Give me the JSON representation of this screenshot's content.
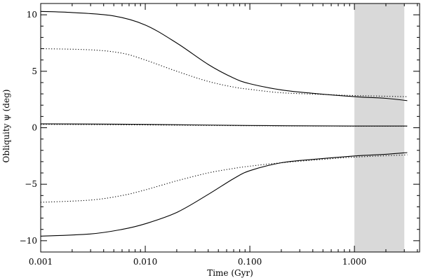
{
  "chart_data": {
    "type": "line",
    "xlabel": "Time (Gyr)",
    "ylabel": "Obliquity ψ (deg)",
    "x_scale": "log",
    "xlim": [
      0.001,
      4.2
    ],
    "ylim": [
      -11,
      11
    ],
    "x_ticks": [
      {
        "value": 0.001,
        "label": "0.001"
      },
      {
        "value": 0.01,
        "label": "0.010"
      },
      {
        "value": 0.1,
        "label": "0.100"
      },
      {
        "value": 1.0,
        "label": "1.000"
      }
    ],
    "y_ticks": [
      {
        "value": -10,
        "label": "−10"
      },
      {
        "value": -5,
        "label": "−5"
      },
      {
        "value": 0,
        "label": "0"
      },
      {
        "value": 5,
        "label": "5"
      },
      {
        "value": 10,
        "label": "10"
      }
    ],
    "shaded_region": {
      "x_start": 1.0,
      "x_end": 3.0,
      "color": "#d9d9d9"
    },
    "grid": false,
    "series": [
      {
        "style": "solid",
        "color": "#000000",
        "points": [
          [
            0.001,
            10.3
          ],
          [
            0.002,
            10.2
          ],
          [
            0.005,
            9.9
          ],
          [
            0.01,
            9.1
          ],
          [
            0.02,
            7.5
          ],
          [
            0.04,
            5.6
          ],
          [
            0.07,
            4.4
          ],
          [
            0.1,
            3.9
          ],
          [
            0.2,
            3.35
          ],
          [
            0.4,
            3.05
          ],
          [
            1.0,
            2.75
          ],
          [
            2.0,
            2.6
          ],
          [
            3.2,
            2.4
          ]
        ]
      },
      {
        "style": "dotted",
        "color": "#000000",
        "points": [
          [
            0.001,
            7.0
          ],
          [
            0.003,
            6.9
          ],
          [
            0.006,
            6.6
          ],
          [
            0.01,
            6.0
          ],
          [
            0.02,
            5.0
          ],
          [
            0.04,
            4.1
          ],
          [
            0.07,
            3.6
          ],
          [
            0.1,
            3.4
          ],
          [
            0.2,
            3.1
          ],
          [
            0.5,
            2.95
          ],
          [
            1.0,
            2.85
          ],
          [
            3.2,
            2.75
          ]
        ]
      },
      {
        "style": "solid",
        "color": "#000000",
        "points": [
          [
            0.001,
            0.35
          ],
          [
            0.01,
            0.3
          ],
          [
            0.1,
            0.2
          ],
          [
            1.0,
            0.15
          ],
          [
            3.2,
            0.15
          ]
        ]
      },
      {
        "style": "dotted",
        "color": "#000000",
        "points": [
          [
            0.001,
            0.3
          ],
          [
            0.01,
            0.25
          ],
          [
            0.1,
            0.18
          ],
          [
            1.0,
            0.14
          ],
          [
            3.2,
            0.14
          ]
        ]
      },
      {
        "style": "dotted",
        "color": "#000000",
        "points": [
          [
            0.001,
            -6.6
          ],
          [
            0.003,
            -6.4
          ],
          [
            0.006,
            -6.0
          ],
          [
            0.01,
            -5.5
          ],
          [
            0.02,
            -4.7
          ],
          [
            0.04,
            -4.0
          ],
          [
            0.07,
            -3.6
          ],
          [
            0.1,
            -3.4
          ],
          [
            0.2,
            -3.1
          ],
          [
            0.5,
            -2.8
          ],
          [
            1.0,
            -2.6
          ],
          [
            3.2,
            -2.4
          ]
        ]
      },
      {
        "style": "solid",
        "color": "#000000",
        "points": [
          [
            0.001,
            -9.6
          ],
          [
            0.003,
            -9.4
          ],
          [
            0.006,
            -9.0
          ],
          [
            0.01,
            -8.5
          ],
          [
            0.02,
            -7.5
          ],
          [
            0.04,
            -5.9
          ],
          [
            0.07,
            -4.5
          ],
          [
            0.1,
            -3.8
          ],
          [
            0.2,
            -3.1
          ],
          [
            0.4,
            -2.8
          ],
          [
            1.0,
            -2.5
          ],
          [
            2.0,
            -2.35
          ],
          [
            3.2,
            -2.2
          ]
        ]
      }
    ]
  }
}
